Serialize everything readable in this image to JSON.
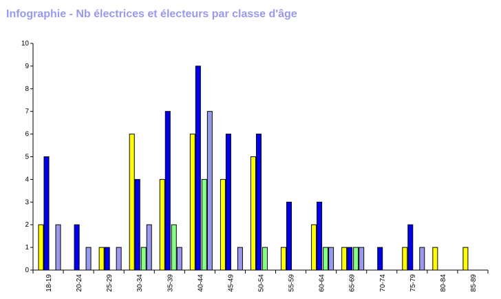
{
  "title": "Infographie - Nb électrices et électeurs par classe d'âge",
  "chart_data": {
    "type": "bar",
    "title": "Infographie - Nb électrices et électeurs par classe d'âge",
    "xlabel": "",
    "ylabel": "",
    "ylim": [
      0,
      10
    ],
    "yticks": [
      "0",
      "1",
      "2",
      "3",
      "4",
      "5",
      "6",
      "7",
      "8",
      "9",
      "10"
    ],
    "grid": false,
    "categories": [
      "18-19",
      "20-24",
      "25-29",
      "30-34",
      "35-39",
      "40-44",
      "45-49",
      "50-54",
      "55-59",
      "60-64",
      "65-69",
      "70-74",
      "75-79",
      "80-84",
      "85-89"
    ],
    "series": [
      {
        "color": "#ffff00",
        "values": [
          2,
          0,
          1,
          6,
          4,
          6,
          4,
          5,
          1,
          2,
          1,
          0,
          1,
          1,
          1
        ]
      },
      {
        "color": "#0000ee",
        "values": [
          5,
          2,
          1,
          4,
          7,
          9,
          6,
          6,
          3,
          3,
          1,
          1,
          2,
          0,
          0
        ]
      },
      {
        "color": "#88ff88",
        "values": [
          0,
          0,
          0,
          1,
          2,
          4,
          0,
          1,
          0,
          1,
          1,
          0,
          0,
          0,
          0
        ]
      },
      {
        "color": "#9999ee",
        "values": [
          2,
          1,
          1,
          2,
          1,
          7,
          1,
          0,
          0,
          1,
          1,
          0,
          1,
          0,
          0
        ]
      }
    ]
  }
}
